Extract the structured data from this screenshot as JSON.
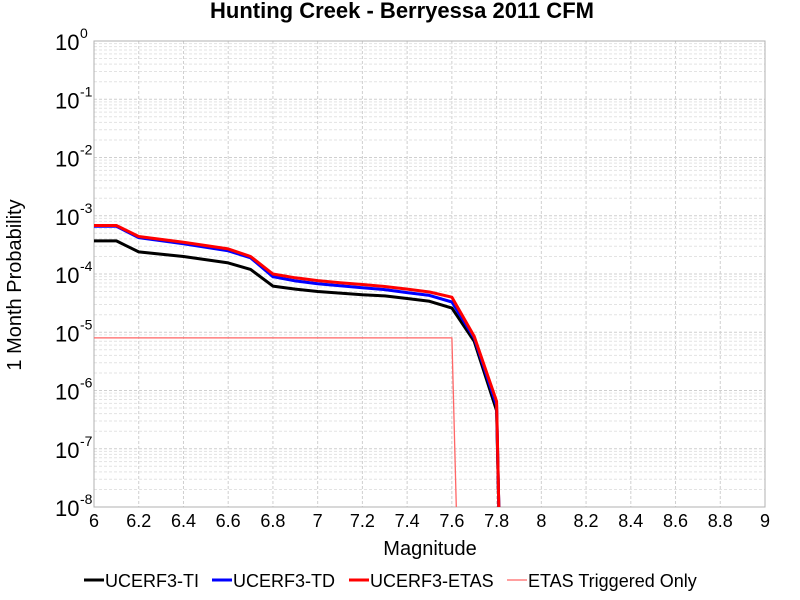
{
  "chart_data": {
    "type": "line",
    "title": "Hunting Creek - Berryessa 2011 CFM",
    "xlabel": "Magnitude",
    "ylabel": "1 Month Probability",
    "xlim": [
      6,
      9
    ],
    "ylim": [
      1e-08,
      1
    ],
    "yscale": "log",
    "grid": true,
    "legend_position": "bottom",
    "x_ticks": [
      "6",
      "6.2",
      "6.4",
      "6.6",
      "6.8",
      "7",
      "7.2",
      "7.4",
      "7.6",
      "7.8",
      "8",
      "8.2",
      "8.4",
      "8.6",
      "8.8",
      "9"
    ],
    "y_ticks": [
      {
        "base": "10",
        "exp": "0"
      },
      {
        "base": "10",
        "exp": "-1"
      },
      {
        "base": "10",
        "exp": "-2"
      },
      {
        "base": "10",
        "exp": "-3"
      },
      {
        "base": "10",
        "exp": "-4"
      },
      {
        "base": "10",
        "exp": "-5"
      },
      {
        "base": "10",
        "exp": "-6"
      },
      {
        "base": "10",
        "exp": "-7"
      },
      {
        "base": "10",
        "exp": "-8"
      }
    ],
    "series": [
      {
        "name": "UCERF3-TI",
        "color": "#000000",
        "width": 3,
        "x": [
          6.0,
          6.1,
          6.2,
          6.4,
          6.6,
          6.7,
          6.8,
          6.9,
          7.0,
          7.1,
          7.2,
          7.3,
          7.4,
          7.5,
          7.6,
          7.7,
          7.8,
          7.81
        ],
        "y": [
          0.00037,
          0.00037,
          0.00024,
          0.0002,
          0.000155,
          0.00012,
          6.2e-05,
          5.5e-05,
          5e-05,
          4.7e-05,
          4.4e-05,
          4.2e-05,
          3.8e-05,
          3.4e-05,
          2.6e-05,
          7e-06,
          4.5e-07,
          1e-08
        ]
      },
      {
        "name": "UCERF3-TD",
        "color": "#0000ff",
        "width": 3,
        "x": [
          6.0,
          6.1,
          6.2,
          6.4,
          6.6,
          6.7,
          6.8,
          6.9,
          7.0,
          7.1,
          7.2,
          7.3,
          7.4,
          7.5,
          7.6,
          7.7,
          7.8,
          7.81
        ],
        "y": [
          0.00066,
          0.00066,
          0.00042,
          0.00033,
          0.00025,
          0.00019,
          9e-05,
          7.6e-05,
          6.8e-05,
          6.3e-05,
          5.8e-05,
          5.4e-05,
          4.8e-05,
          4.3e-05,
          3.3e-05,
          8e-06,
          5.5e-07,
          1e-08
        ]
      },
      {
        "name": "UCERF3-ETAS",
        "color": "#ff0000",
        "width": 3,
        "x": [
          6.0,
          6.1,
          6.2,
          6.4,
          6.6,
          6.7,
          6.8,
          6.9,
          7.0,
          7.1,
          7.2,
          7.3,
          7.4,
          7.5,
          7.6,
          7.7,
          7.8,
          7.81
        ],
        "y": [
          0.00068,
          0.00068,
          0.00044,
          0.00035,
          0.00027,
          0.0002,
          0.0001,
          8.6e-05,
          7.7e-05,
          7.1e-05,
          6.6e-05,
          6.1e-05,
          5.5e-05,
          4.9e-05,
          4e-05,
          8.5e-06,
          6.5e-07,
          1e-08
        ]
      },
      {
        "name": "ETAS Triggered Only",
        "color": "#ff6666",
        "width": 1.3,
        "x": [
          6.0,
          7.6,
          7.62
        ],
        "y": [
          8e-06,
          8e-06,
          1e-08
        ]
      }
    ]
  }
}
